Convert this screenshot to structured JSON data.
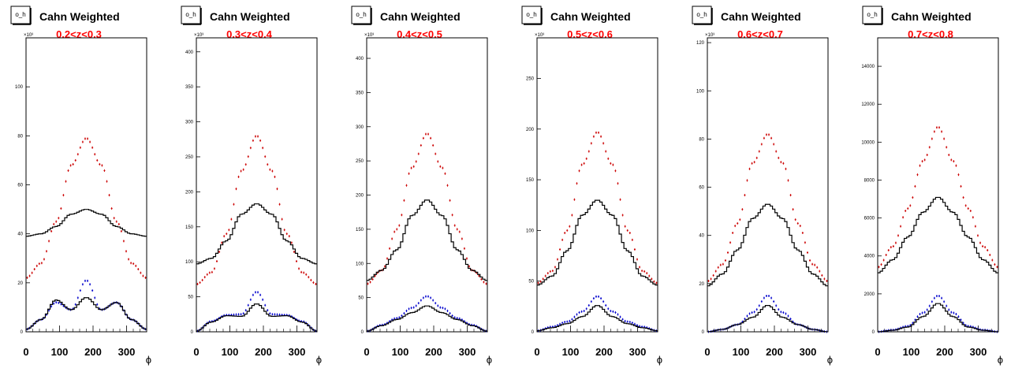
{
  "chart_data": [
    {
      "type": "line",
      "histogram_name": "o_h",
      "title": "Cahn Weighted",
      "subtitle": "0.2<z<0.3",
      "xlabel": "ϕ",
      "ylabel": "",
      "y_exponent": "×10³",
      "xlim": [
        0,
        360
      ],
      "ylim": [
        0,
        120
      ],
      "xticks": [
        0,
        100,
        200,
        300
      ],
      "yticks": [
        0,
        20,
        40,
        60,
        80,
        100
      ],
      "grid": false,
      "legend": "none",
      "series": [
        {
          "color": "#cc0000",
          "style": "markers",
          "x": [
            0,
            45,
            90,
            135,
            180,
            225,
            270,
            315,
            360
          ],
          "values": [
            22,
            28,
            45,
            68,
            79,
            68,
            45,
            28,
            22
          ]
        },
        {
          "color": "#000000",
          "style": "step",
          "x": [
            0,
            45,
            90,
            135,
            180,
            225,
            270,
            315,
            360
          ],
          "values": [
            39,
            40,
            43,
            48,
            50,
            48,
            43,
            40,
            39
          ]
        },
        {
          "color": "#0000cc",
          "style": "markers",
          "x": [
            0,
            45,
            90,
            135,
            180,
            225,
            270,
            315,
            360
          ],
          "values": [
            1,
            5,
            12,
            9,
            21,
            9,
            12,
            5,
            1
          ]
        },
        {
          "color": "#000000",
          "style": "step",
          "x": [
            0,
            45,
            90,
            135,
            180,
            225,
            270,
            315,
            360
          ],
          "values": [
            1,
            5,
            13,
            9,
            14,
            9,
            12,
            5,
            1
          ]
        }
      ]
    },
    {
      "type": "line",
      "histogram_name": "o_h",
      "title": "Cahn Weighted",
      "subtitle": "0.3<z<0.4",
      "xlabel": "ϕ",
      "ylabel": "",
      "y_exponent": "×10³",
      "xlim": [
        0,
        360
      ],
      "ylim": [
        0,
        420
      ],
      "xticks": [
        0,
        100,
        200,
        300
      ],
      "yticks": [
        0,
        50,
        100,
        150,
        200,
        250,
        300,
        350,
        400
      ],
      "grid": false,
      "legend": "none",
      "series": [
        {
          "color": "#cc0000",
          "style": "markers",
          "x": [
            0,
            45,
            90,
            135,
            180,
            225,
            270,
            315,
            360
          ],
          "values": [
            68,
            85,
            140,
            230,
            280,
            230,
            140,
            85,
            68
          ]
        },
        {
          "color": "#000000",
          "style": "step",
          "x": [
            0,
            45,
            90,
            135,
            180,
            225,
            270,
            315,
            360
          ],
          "values": [
            97,
            105,
            130,
            168,
            183,
            168,
            130,
            105,
            97
          ]
        },
        {
          "color": "#0000cc",
          "style": "markers",
          "x": [
            0,
            45,
            90,
            135,
            180,
            225,
            270,
            315,
            360
          ],
          "values": [
            1,
            15,
            24,
            25,
            57,
            25,
            24,
            15,
            1
          ]
        },
        {
          "color": "#000000",
          "style": "step",
          "x": [
            0,
            45,
            90,
            135,
            180,
            225,
            270,
            315,
            360
          ],
          "values": [
            1,
            14,
            23,
            22,
            40,
            22,
            23,
            14,
            1
          ]
        }
      ]
    },
    {
      "type": "line",
      "histogram_name": "o_h",
      "title": "Cahn Weighted",
      "subtitle": "0.4<z<0.5",
      "xlabel": "ϕ",
      "ylabel": "",
      "y_exponent": "×10³",
      "xlim": [
        0,
        360
      ],
      "ylim": [
        0,
        430
      ],
      "xticks": [
        0,
        100,
        200,
        300
      ],
      "yticks": [
        0,
        50,
        100,
        150,
        200,
        250,
        300,
        350,
        400
      ],
      "grid": false,
      "legend": "none",
      "series": [
        {
          "color": "#cc0000",
          "style": "markers",
          "x": [
            0,
            45,
            90,
            135,
            180,
            225,
            270,
            315,
            360
          ],
          "values": [
            70,
            90,
            150,
            240,
            290,
            240,
            150,
            90,
            70
          ]
        },
        {
          "color": "#000000",
          "style": "step",
          "x": [
            0,
            45,
            90,
            135,
            180,
            225,
            270,
            315,
            360
          ],
          "values": [
            75,
            90,
            120,
            170,
            193,
            170,
            120,
            90,
            75
          ]
        },
        {
          "color": "#0000cc",
          "style": "markers",
          "x": [
            0,
            45,
            90,
            135,
            180,
            225,
            270,
            315,
            360
          ],
          "values": [
            1,
            10,
            20,
            35,
            52,
            35,
            20,
            10,
            1
          ]
        },
        {
          "color": "#000000",
          "style": "step",
          "x": [
            0,
            45,
            90,
            135,
            180,
            225,
            270,
            315,
            360
          ],
          "values": [
            1,
            9,
            18,
            28,
            38,
            28,
            18,
            9,
            1
          ]
        }
      ]
    },
    {
      "type": "line",
      "histogram_name": "o_h",
      "title": "Cahn Weighted",
      "subtitle": "0.5<z<0.6",
      "xlabel": "ϕ",
      "ylabel": "",
      "y_exponent": "×10³",
      "xlim": [
        0,
        360
      ],
      "ylim": [
        0,
        290
      ],
      "xticks": [
        0,
        100,
        200,
        300
      ],
      "yticks": [
        0,
        50,
        100,
        150,
        200,
        250
      ],
      "grid": false,
      "legend": "none",
      "series": [
        {
          "color": "#cc0000",
          "style": "markers",
          "x": [
            0,
            45,
            90,
            135,
            180,
            225,
            270,
            315,
            360
          ],
          "values": [
            48,
            60,
            100,
            165,
            197,
            165,
            100,
            60,
            48
          ]
        },
        {
          "color": "#000000",
          "style": "step",
          "x": [
            0,
            45,
            90,
            135,
            180,
            225,
            270,
            315,
            360
          ],
          "values": [
            46,
            55,
            80,
            115,
            130,
            115,
            80,
            55,
            46
          ]
        },
        {
          "color": "#0000cc",
          "style": "markers",
          "x": [
            0,
            45,
            90,
            135,
            180,
            225,
            270,
            315,
            360
          ],
          "values": [
            1,
            5,
            10,
            20,
            35,
            20,
            10,
            5,
            1
          ]
        },
        {
          "color": "#000000",
          "style": "step",
          "x": [
            0,
            45,
            90,
            135,
            180,
            225,
            270,
            315,
            360
          ],
          "values": [
            1,
            4,
            8,
            15,
            26,
            15,
            8,
            4,
            1
          ]
        }
      ]
    },
    {
      "type": "line",
      "histogram_name": "o_h",
      "title": "Cahn Weighted",
      "subtitle": "0.6<z<0.7",
      "xlabel": "ϕ",
      "ylabel": "",
      "y_exponent": "×10³",
      "xlim": [
        0,
        360
      ],
      "ylim": [
        0,
        122
      ],
      "xticks": [
        0,
        100,
        200,
        300
      ],
      "yticks": [
        0,
        20,
        40,
        60,
        80,
        100,
        120
      ],
      "grid": false,
      "legend": "none",
      "series": [
        {
          "color": "#cc0000",
          "style": "markers",
          "x": [
            0,
            45,
            90,
            135,
            180,
            225,
            270,
            315,
            360
          ],
          "values": [
            21,
            28,
            45,
            70,
            82,
            70,
            45,
            28,
            21
          ]
        },
        {
          "color": "#000000",
          "style": "step",
          "x": [
            0,
            45,
            90,
            135,
            180,
            225,
            270,
            315,
            360
          ],
          "values": [
            19,
            24,
            34,
            47,
            53,
            47,
            34,
            24,
            19
          ]
        },
        {
          "color": "#0000cc",
          "style": "markers",
          "x": [
            0,
            45,
            90,
            135,
            180,
            225,
            270,
            315,
            360
          ],
          "values": [
            0,
            1,
            3,
            8,
            15,
            8,
            3,
            1,
            0
          ]
        },
        {
          "color": "#000000",
          "style": "step",
          "x": [
            0,
            45,
            90,
            135,
            180,
            225,
            270,
            315,
            360
          ],
          "values": [
            0,
            1,
            3,
            6,
            11,
            6,
            3,
            1,
            0
          ]
        }
      ]
    },
    {
      "type": "line",
      "histogram_name": "o_h",
      "title": "Cahn Weighted",
      "subtitle": "0.7<z<0.8",
      "xlabel": "ϕ",
      "ylabel": "",
      "y_exponent": "",
      "xlim": [
        0,
        360
      ],
      "ylim": [
        0,
        15500
      ],
      "xticks": [
        0,
        100,
        200,
        300
      ],
      "yticks": [
        0,
        2000,
        4000,
        6000,
        8000,
        10000,
        12000,
        14000
      ],
      "grid": false,
      "legend": "none",
      "series": [
        {
          "color": "#cc0000",
          "style": "markers",
          "x": [
            0,
            45,
            90,
            135,
            180,
            225,
            270,
            315,
            360
          ],
          "values": [
            3400,
            4500,
            6500,
            9000,
            10800,
            9000,
            6500,
            4500,
            3400
          ]
        },
        {
          "color": "#000000",
          "style": "step",
          "x": [
            0,
            45,
            90,
            135,
            180,
            225,
            270,
            315,
            360
          ],
          "values": [
            3100,
            3800,
            5000,
            6300,
            7100,
            6300,
            5000,
            3800,
            3100
          ]
        },
        {
          "color": "#0000cc",
          "style": "markers",
          "x": [
            0,
            45,
            90,
            135,
            180,
            225,
            270,
            315,
            360
          ],
          "values": [
            0,
            100,
            300,
            1000,
            1900,
            1000,
            300,
            100,
            0
          ]
        },
        {
          "color": "#000000",
          "style": "step",
          "x": [
            0,
            45,
            90,
            135,
            180,
            225,
            270,
            315,
            360
          ],
          "values": [
            0,
            80,
            250,
            800,
            1500,
            800,
            250,
            80,
            0
          ]
        }
      ]
    }
  ]
}
